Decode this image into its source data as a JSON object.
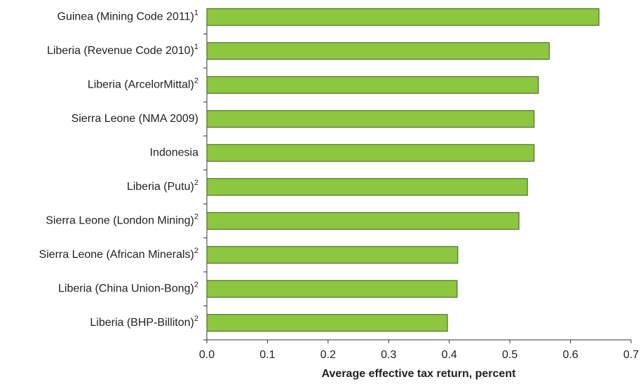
{
  "chart_data": {
    "type": "hbar",
    "categories": [
      "Guinea (Mining Code 2011)",
      "Liberia (Revenue Code 2010)",
      "Liberia (ArcelorMittal)",
      "Sierra Leone (NMA 2009)",
      "Indonesia",
      "Liberia (Putu)",
      "Sierra Leone (London Mining)",
      "Sierra Leone (African Minerals)",
      "Liberia (China Union-Bong)",
      "Liberia (BHP-Billiton)"
    ],
    "category_notes": [
      "1",
      "1",
      "2",
      null,
      null,
      "2",
      "2",
      "2",
      "2",
      "2"
    ],
    "values": [
      0.647,
      0.565,
      0.547,
      0.54,
      0.54,
      0.529,
      0.515,
      0.414,
      0.413,
      0.397
    ],
    "color": "#8dc63f",
    "x_label": "Average effective tax return, percent",
    "xlim": [
      0,
      0.7
    ],
    "xticks": [
      {
        "value": 0,
        "label": "0.0"
      },
      0.1,
      0.2,
      0.3,
      0.4,
      0.5,
      0.6,
      0.7
    ],
    "grid": false
  }
}
